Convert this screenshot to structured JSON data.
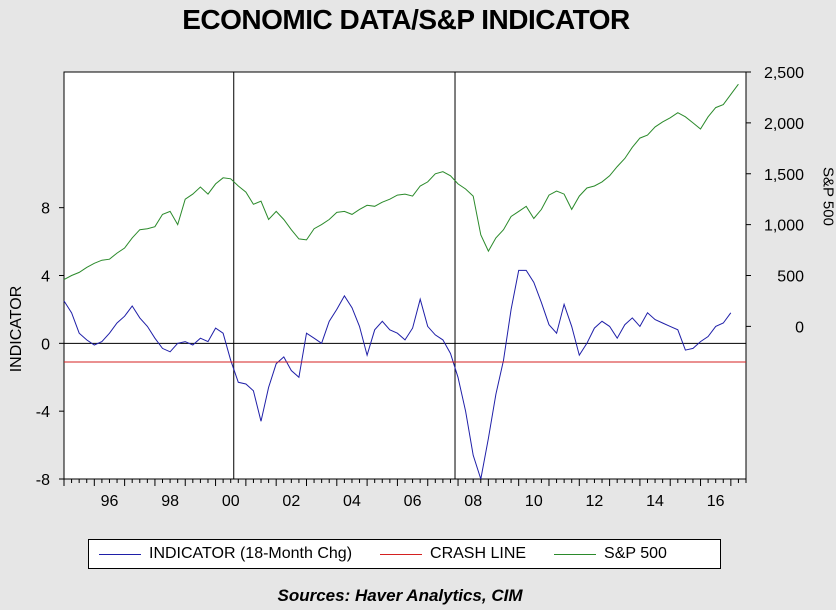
{
  "chart_data": {
    "type": "line",
    "title": "ECONOMIC DATA/S&P INDICATOR",
    "ylabel_left": "INDICATOR",
    "ylabel_right": "S&P 500",
    "source": "Sources:  Haver Analytics, CIM",
    "xlim": [
      1995,
      2017.5
    ],
    "x_ticks": [
      {
        "x": 1996,
        "label": "96"
      },
      {
        "x": 1998,
        "label": "98"
      },
      {
        "x": 2000,
        "label": "00"
      },
      {
        "x": 2002,
        "label": "02"
      },
      {
        "x": 2004,
        "label": "04"
      },
      {
        "x": 2006,
        "label": "06"
      },
      {
        "x": 2008,
        "label": "08"
      },
      {
        "x": 2010,
        "label": "10"
      },
      {
        "x": 2012,
        "label": "12"
      },
      {
        "x": 2014,
        "label": "14"
      },
      {
        "x": 2016,
        "label": "16"
      }
    ],
    "y_left": {
      "range": [
        -8,
        16
      ],
      "ticks": [
        -8,
        -4,
        0,
        4,
        8
      ],
      "tick_labels": [
        "-8",
        "-4",
        "0",
        "4",
        "8"
      ]
    },
    "y_right": {
      "range": [
        -1500,
        2500
      ],
      "ticks": [
        0,
        500,
        1000,
        1500,
        2000,
        2500
      ],
      "tick_labels": [
        "0",
        "500",
        "1,000",
        "1,500",
        "2,000",
        "2,500"
      ]
    },
    "reference_lines": [
      {
        "axis": "y_left",
        "value": 0,
        "color": "#000000"
      },
      {
        "axis": "x",
        "value": 2000.6,
        "color": "#000000"
      },
      {
        "axis": "x",
        "value": 2007.9,
        "color": "#000000"
      }
    ],
    "series": [
      {
        "name": "INDICATOR (18-Month Chg)",
        "axis": "left",
        "color": "#1f1fa8",
        "x": [
          1995.0,
          1995.25,
          1995.5,
          1995.75,
          1996.0,
          1996.25,
          1996.5,
          1996.75,
          1997.0,
          1997.25,
          1997.5,
          1997.75,
          1998.0,
          1998.25,
          1998.5,
          1998.75,
          1999.0,
          1999.25,
          1999.5,
          1999.75,
          2000.0,
          2000.25,
          2000.5,
          2000.75,
          2001.0,
          2001.25,
          2001.5,
          2001.75,
          2002.0,
          2002.25,
          2002.5,
          2002.75,
          2003.0,
          2003.25,
          2003.5,
          2003.75,
          2004.0,
          2004.25,
          2004.5,
          2004.75,
          2005.0,
          2005.25,
          2005.5,
          2005.75,
          2006.0,
          2006.25,
          2006.5,
          2006.75,
          2007.0,
          2007.25,
          2007.5,
          2007.75,
          2008.0,
          2008.25,
          2008.5,
          2008.75,
          2009.0,
          2009.25,
          2009.5,
          2009.75,
          2010.0,
          2010.25,
          2010.5,
          2010.75,
          2011.0,
          2011.25,
          2011.5,
          2011.75,
          2012.0,
          2012.25,
          2012.5,
          2012.75,
          2013.0,
          2013.25,
          2013.5,
          2013.75,
          2014.0,
          2014.25,
          2014.5,
          2014.75,
          2015.0,
          2015.25,
          2015.5,
          2015.75,
          2016.0,
          2016.25,
          2016.5,
          2016.75,
          2017.0
        ],
        "y": [
          2.5,
          1.8,
          0.6,
          0.2,
          -0.1,
          0.1,
          0.6,
          1.2,
          1.6,
          2.2,
          1.5,
          1.0,
          0.3,
          -0.3,
          -0.5,
          0.0,
          0.1,
          -0.1,
          0.3,
          0.1,
          0.9,
          0.6,
          -1.0,
          -2.3,
          -2.4,
          -2.8,
          -4.6,
          -2.6,
          -1.2,
          -0.8,
          -1.6,
          -2.0,
          0.6,
          0.3,
          0.0,
          1.3,
          2.0,
          2.8,
          2.1,
          1.0,
          -0.7,
          0.8,
          1.3,
          0.8,
          0.6,
          0.2,
          0.9,
          2.6,
          1.0,
          0.5,
          0.2,
          -0.6,
          -2.0,
          -4.0,
          -6.6,
          -8.0,
          -5.6,
          -3.0,
          -1.0,
          2.0,
          4.3,
          4.3,
          3.6,
          2.4,
          1.1,
          0.6,
          2.3,
          1.0,
          -0.7,
          0.0,
          0.9,
          1.3,
          1.0,
          0.3,
          1.1,
          1.5,
          1.0,
          1.8,
          1.4,
          1.2,
          1.0,
          0.8,
          -0.4,
          -0.3,
          0.1,
          0.4,
          1.0,
          1.2,
          1.8
        ]
      },
      {
        "name": "CRASH LINE",
        "axis": "left",
        "color": "#d42020",
        "x": [
          1995.0,
          2017.5
        ],
        "y": [
          -1.1,
          -1.1
        ]
      },
      {
        "name": "S&P 500",
        "axis": "right",
        "color": "#2b8a2b",
        "x": [
          1995.0,
          1995.25,
          1995.5,
          1995.75,
          1996.0,
          1996.25,
          1996.5,
          1996.75,
          1997.0,
          1997.25,
          1997.5,
          1997.75,
          1998.0,
          1998.25,
          1998.5,
          1998.75,
          1999.0,
          1999.25,
          1999.5,
          1999.75,
          2000.0,
          2000.25,
          2000.5,
          2000.75,
          2001.0,
          2001.25,
          2001.5,
          2001.75,
          2002.0,
          2002.25,
          2002.5,
          2002.75,
          2003.0,
          2003.25,
          2003.5,
          2003.75,
          2004.0,
          2004.25,
          2004.5,
          2004.75,
          2005.0,
          2005.25,
          2005.5,
          2005.75,
          2006.0,
          2006.25,
          2006.5,
          2006.75,
          2007.0,
          2007.25,
          2007.5,
          2007.75,
          2008.0,
          2008.25,
          2008.5,
          2008.75,
          2009.0,
          2009.25,
          2009.5,
          2009.75,
          2010.0,
          2010.25,
          2010.5,
          2010.75,
          2011.0,
          2011.25,
          2011.5,
          2011.75,
          2012.0,
          2012.25,
          2012.5,
          2012.75,
          2013.0,
          2013.25,
          2013.5,
          2013.75,
          2014.0,
          2014.25,
          2014.5,
          2014.75,
          2015.0,
          2015.25,
          2015.5,
          2015.75,
          2016.0,
          2016.25,
          2016.5,
          2016.75,
          2017.0,
          2017.25
        ],
        "y": [
          460,
          500,
          530,
          580,
          620,
          650,
          660,
          720,
          770,
          870,
          950,
          960,
          980,
          1100,
          1130,
          1000,
          1250,
          1300,
          1370,
          1300,
          1400,
          1460,
          1450,
          1380,
          1320,
          1200,
          1230,
          1050,
          1130,
          1050,
          950,
          860,
          850,
          960,
          1000,
          1050,
          1120,
          1130,
          1100,
          1150,
          1190,
          1180,
          1220,
          1250,
          1290,
          1300,
          1280,
          1380,
          1420,
          1500,
          1520,
          1480,
          1400,
          1350,
          1280,
          900,
          740,
          870,
          950,
          1080,
          1130,
          1180,
          1060,
          1150,
          1290,
          1330,
          1300,
          1150,
          1280,
          1360,
          1380,
          1420,
          1480,
          1570,
          1650,
          1760,
          1850,
          1880,
          1960,
          2010,
          2050,
          2100,
          2060,
          2000,
          1940,
          2060,
          2150,
          2180,
          2280,
          2380
        ]
      }
    ],
    "legend": [
      {
        "label": "INDICATOR (18-Month Chg)",
        "color": "#1f1fa8"
      },
      {
        "label": "CRASH LINE",
        "color": "#d42020"
      },
      {
        "label": "S&P 500",
        "color": "#2b8a2b"
      }
    ]
  }
}
